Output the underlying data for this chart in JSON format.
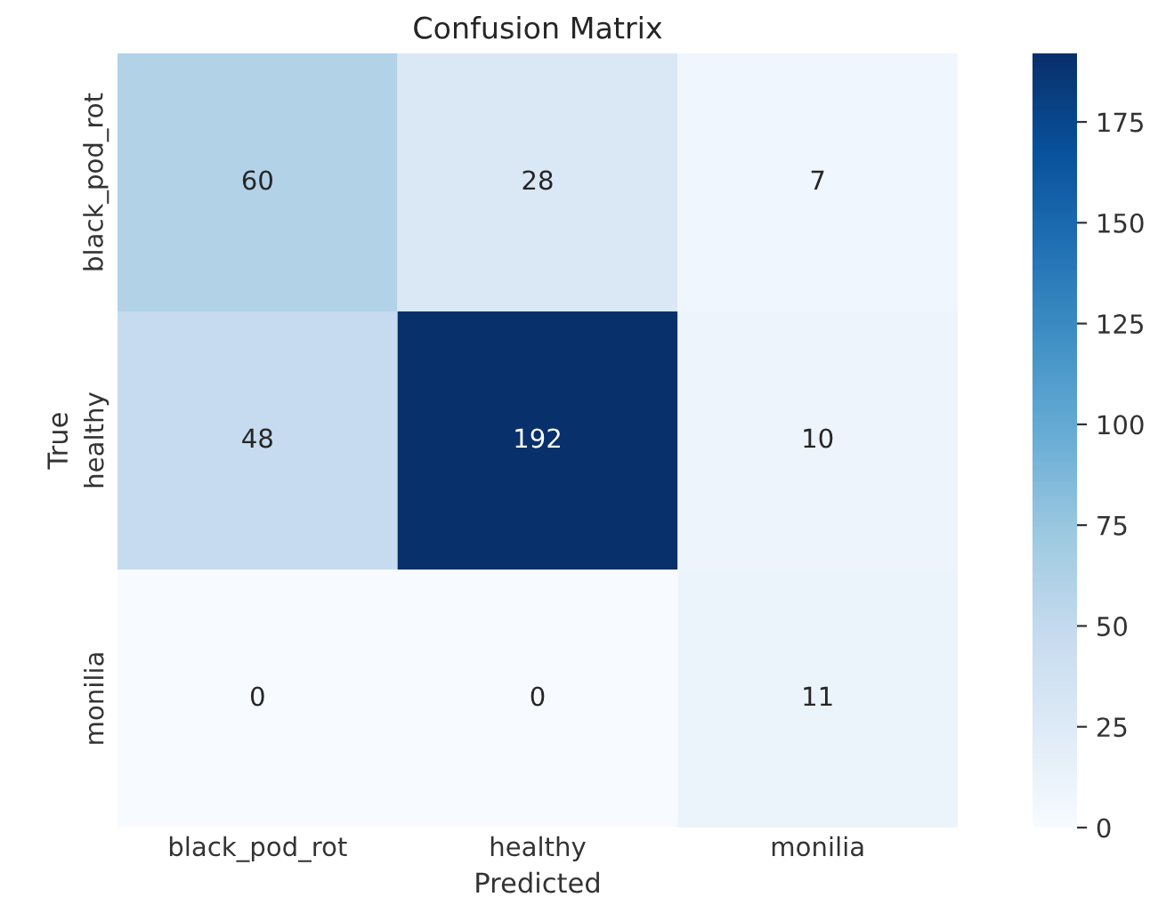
{
  "chart_data": {
    "type": "heatmap",
    "title": "Confusion Matrix",
    "xlabel": "Predicted",
    "ylabel": "True",
    "categories": [
      "black_pod_rot",
      "healthy",
      "monilia"
    ],
    "y_categories": [
      "black_pod_rot",
      "healthy",
      "monilia"
    ],
    "cells": [
      [
        60,
        28,
        7
      ],
      [
        48,
        192,
        10
      ],
      [
        0,
        0,
        11
      ]
    ],
    "clim": [
      0,
      192
    ],
    "cticks": [
      0,
      25,
      50,
      75,
      100,
      125,
      150,
      175
    ],
    "data_labels": true
  }
}
